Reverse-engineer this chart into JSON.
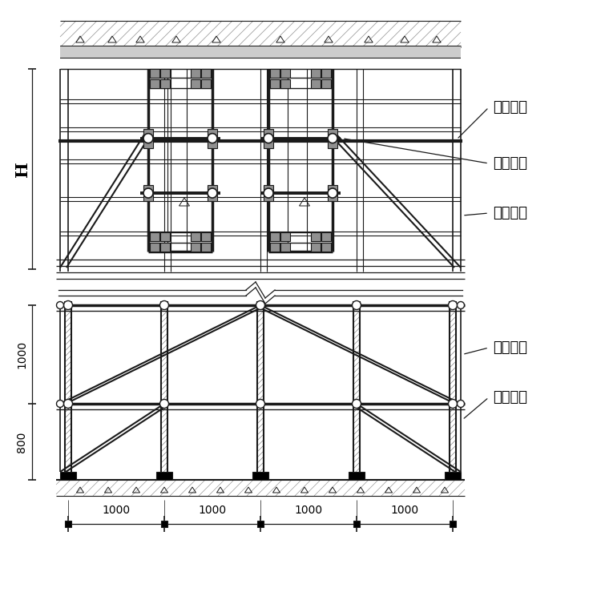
{
  "bg_color": "#ffffff",
  "lc": "#1a1a1a",
  "labels": {
    "kljc": "框梁斜撑",
    "dlsg": "对拉丝杆",
    "jggm": "加固锂管",
    "jgxc": "加固斜撑",
    "zczb": "支撑庸板"
  },
  "dim_H": "H",
  "dim_1000": "1000",
  "dim_800": "800",
  "font_label": 13,
  "font_dim": 11
}
